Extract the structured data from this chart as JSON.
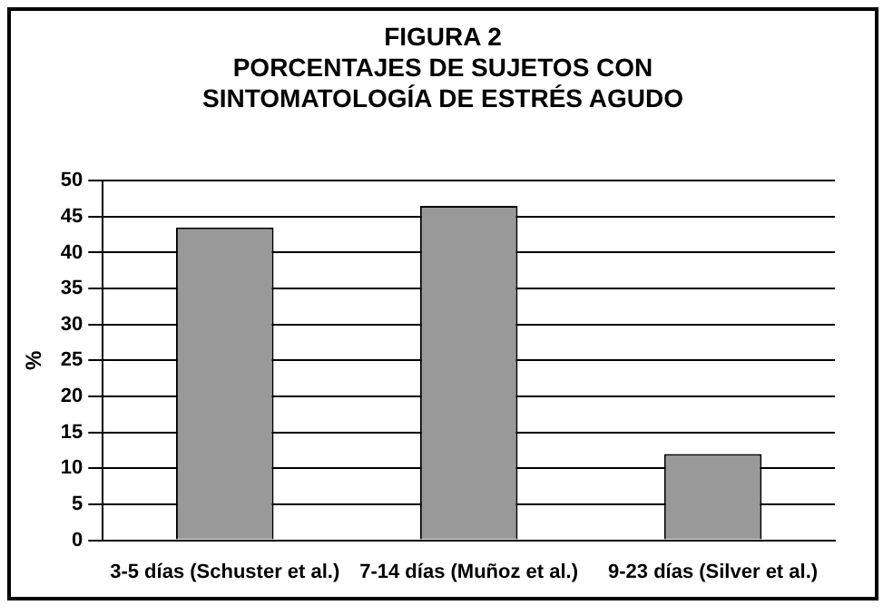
{
  "chart_data": {
    "type": "bar",
    "title": "FIGURA 2",
    "subtitle": "PORCENTAJES DE SUJETOS CON SINTOMATOLOGÍA DE ESTRÉS AGUDO",
    "ylabel": "%",
    "categories": [
      "3-5 días (Schuster et al.)",
      "7-14 días (Muñoz et al.)",
      "9-23 días (Silver et al.)"
    ],
    "values": [
      43.5,
      46.5,
      12
    ],
    "color": "#999999",
    "ylim": [
      0,
      50
    ],
    "yticks": [
      0,
      5,
      10,
      15,
      20,
      25,
      30,
      35,
      40,
      45,
      50
    ],
    "grid": "y"
  }
}
